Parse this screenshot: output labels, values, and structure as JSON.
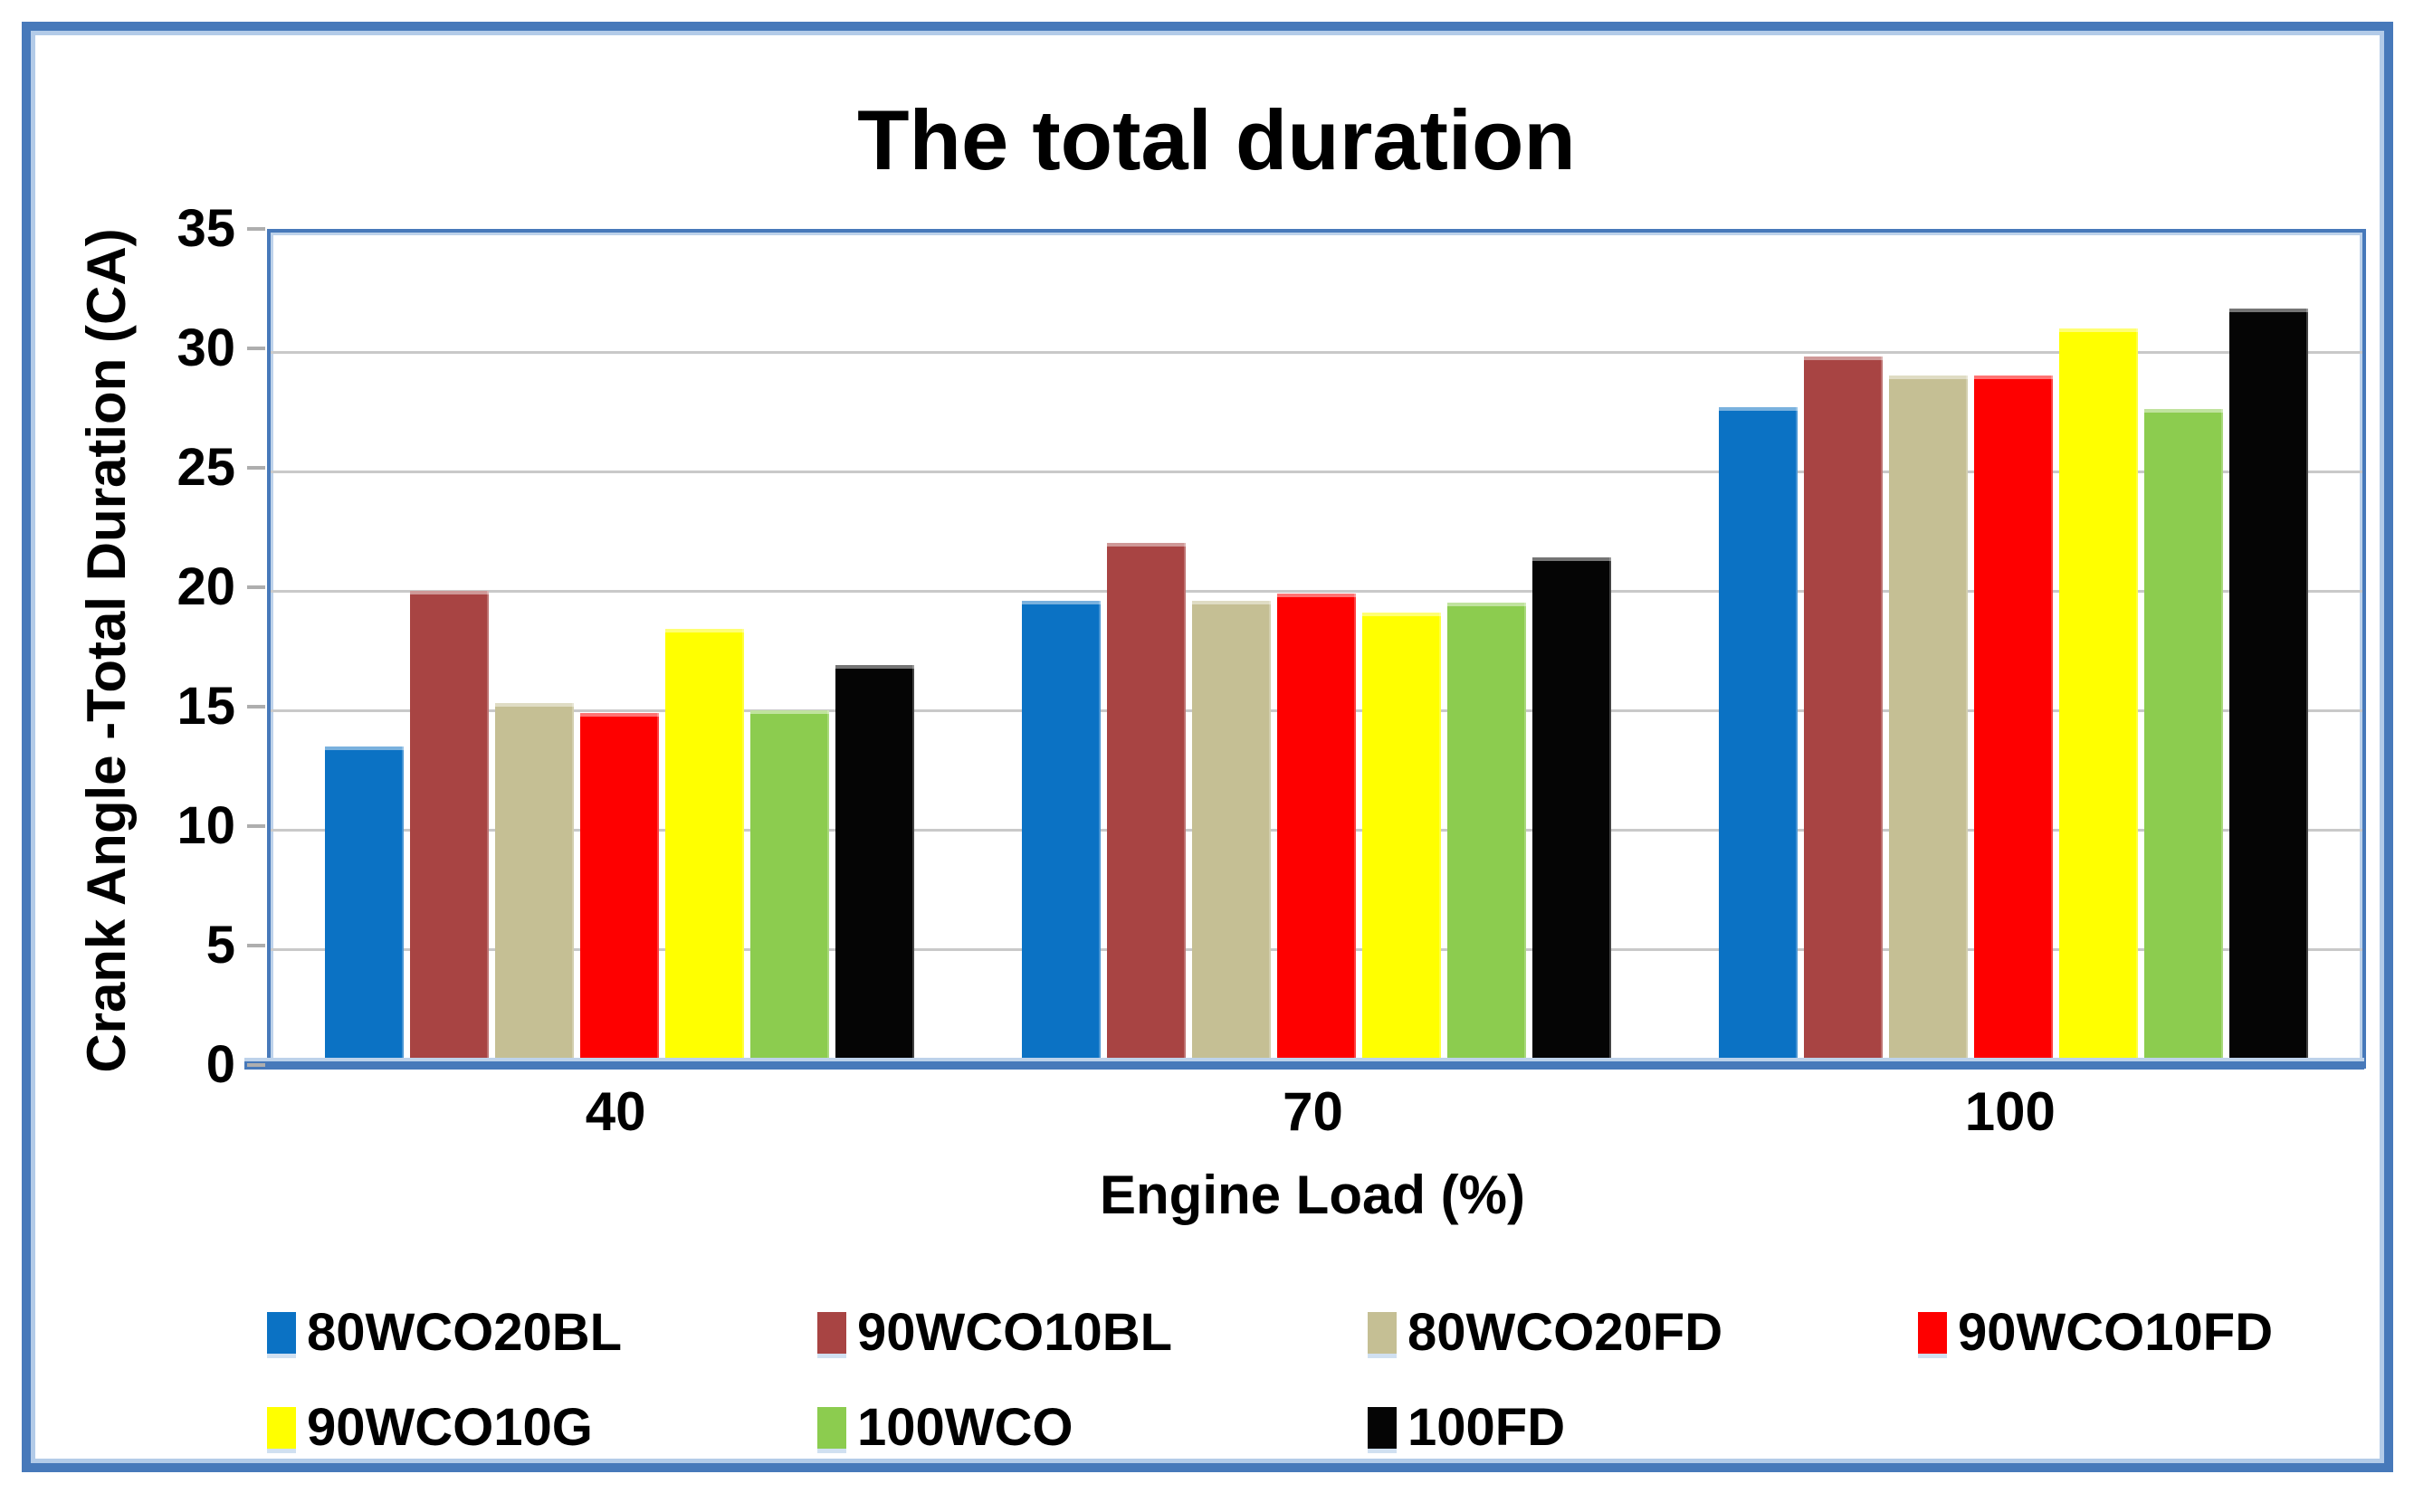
{
  "title": "The total duration",
  "colors": {
    "frame_blue": "#4779ba",
    "frame_light_blue": "#b3cbe8",
    "gridline_gray": "#c9c9c9",
    "text": "#000000",
    "background": "#ffffff"
  },
  "chart_data": {
    "type": "bar",
    "title": "The total duration",
    "xlabel": "Engine Load (%)",
    "ylabel": "Crank Angle -Total Duration (CA)",
    "categories": [
      "40",
      "70",
      "100"
    ],
    "ylim": [
      0,
      35
    ],
    "yticks": [
      0,
      5,
      10,
      15,
      20,
      25,
      30,
      35
    ],
    "grid": true,
    "legend_position": "bottom",
    "series": [
      {
        "name": "80WCO20BL",
        "color": "#0b72c4",
        "values": [
          13.5,
          19.6,
          27.7
        ]
      },
      {
        "name": "90WCO10BL",
        "color": "#a84443",
        "values": [
          20.0,
          22.0,
          29.8
        ]
      },
      {
        "name": "80WCO20FD",
        "color": "#c5bf94",
        "values": [
          15.3,
          19.6,
          29.0
        ]
      },
      {
        "name": "90WCO10FD",
        "color": "#fe0000",
        "values": [
          14.9,
          19.9,
          29.0
        ]
      },
      {
        "name": "90WCO10G",
        "color": "#ffff00",
        "values": [
          18.4,
          19.1,
          31.0
        ]
      },
      {
        "name": "100WCO",
        "color": "#8ccc4f",
        "values": [
          15.0,
          19.5,
          27.6
        ]
      },
      {
        "name": "100FD",
        "color": "#050505",
        "values": [
          16.9,
          21.4,
          31.8
        ]
      }
    ]
  }
}
